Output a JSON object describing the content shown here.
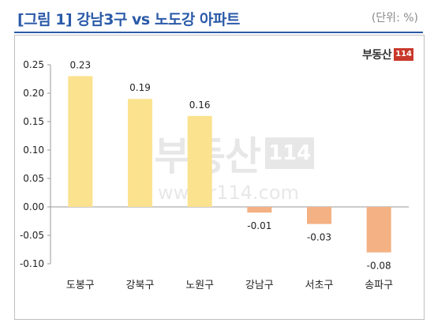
{
  "header": {
    "title": "[그림 1] 강남3구 vs  노도강 아파트",
    "unit": "(단위: %)"
  },
  "logo": {
    "text": "부동산",
    "badge": "114"
  },
  "watermark": {
    "text": "부동산",
    "badge": "114",
    "url": "www.r114.com"
  },
  "chart_data": {
    "type": "bar",
    "categories": [
      "도봉구",
      "강북구",
      "노원구",
      "강남구",
      "서초구",
      "송파구"
    ],
    "values": [
      0.23,
      0.19,
      0.16,
      -0.01,
      -0.03,
      -0.08
    ],
    "data_labels": [
      "0.23",
      "0.19",
      "0.16",
      "-0.01",
      "-0.03",
      "-0.08"
    ],
    "ylim": [
      -0.1,
      0.25
    ],
    "yticks": [
      0.25,
      0.2,
      0.15,
      0.1,
      0.05,
      0.0,
      -0.05,
      -0.1
    ],
    "ytick_labels": [
      "0.25",
      "0.20",
      "0.15",
      "0.10",
      "0.05",
      "0.00",
      "-0.05",
      "-0.10"
    ],
    "grid": false,
    "colors": {
      "positive": "#fbe28f",
      "negative": "#f4b183",
      "axis": "#9a9a9a",
      "text": "#222222"
    }
  }
}
